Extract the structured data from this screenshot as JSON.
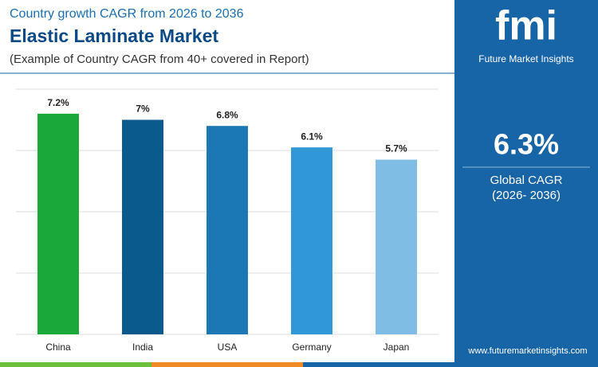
{
  "header": {
    "kicker": "Country growth CAGR from 2026 to 2036",
    "title": "Elastic Laminate Market",
    "note": "(Example of Country CAGR from 40+ covered in Report)"
  },
  "chart_data": {
    "type": "bar",
    "categories": [
      "China",
      "India",
      "USA",
      "Germany",
      "Japan"
    ],
    "values": [
      7.2,
      7,
      6.8,
      6.1,
      5.7
    ],
    "value_labels": [
      "7.2%",
      "7%",
      "6.8%",
      "6.1%",
      "5.7%"
    ],
    "colors": [
      "#1aa83a",
      "#0b5a8e",
      "#1b78b5",
      "#3198d8",
      "#80bde4"
    ],
    "ylim": [
      0,
      8
    ],
    "yticks": [
      0,
      2,
      4,
      6,
      8
    ],
    "grid": true
  },
  "panel": {
    "logo": "fmi",
    "brand": "Future Market Insights",
    "value": "6.3%",
    "label": "Global CAGR",
    "period": "(2026- 2036)",
    "url": "www.futuremarketinsights.com"
  }
}
